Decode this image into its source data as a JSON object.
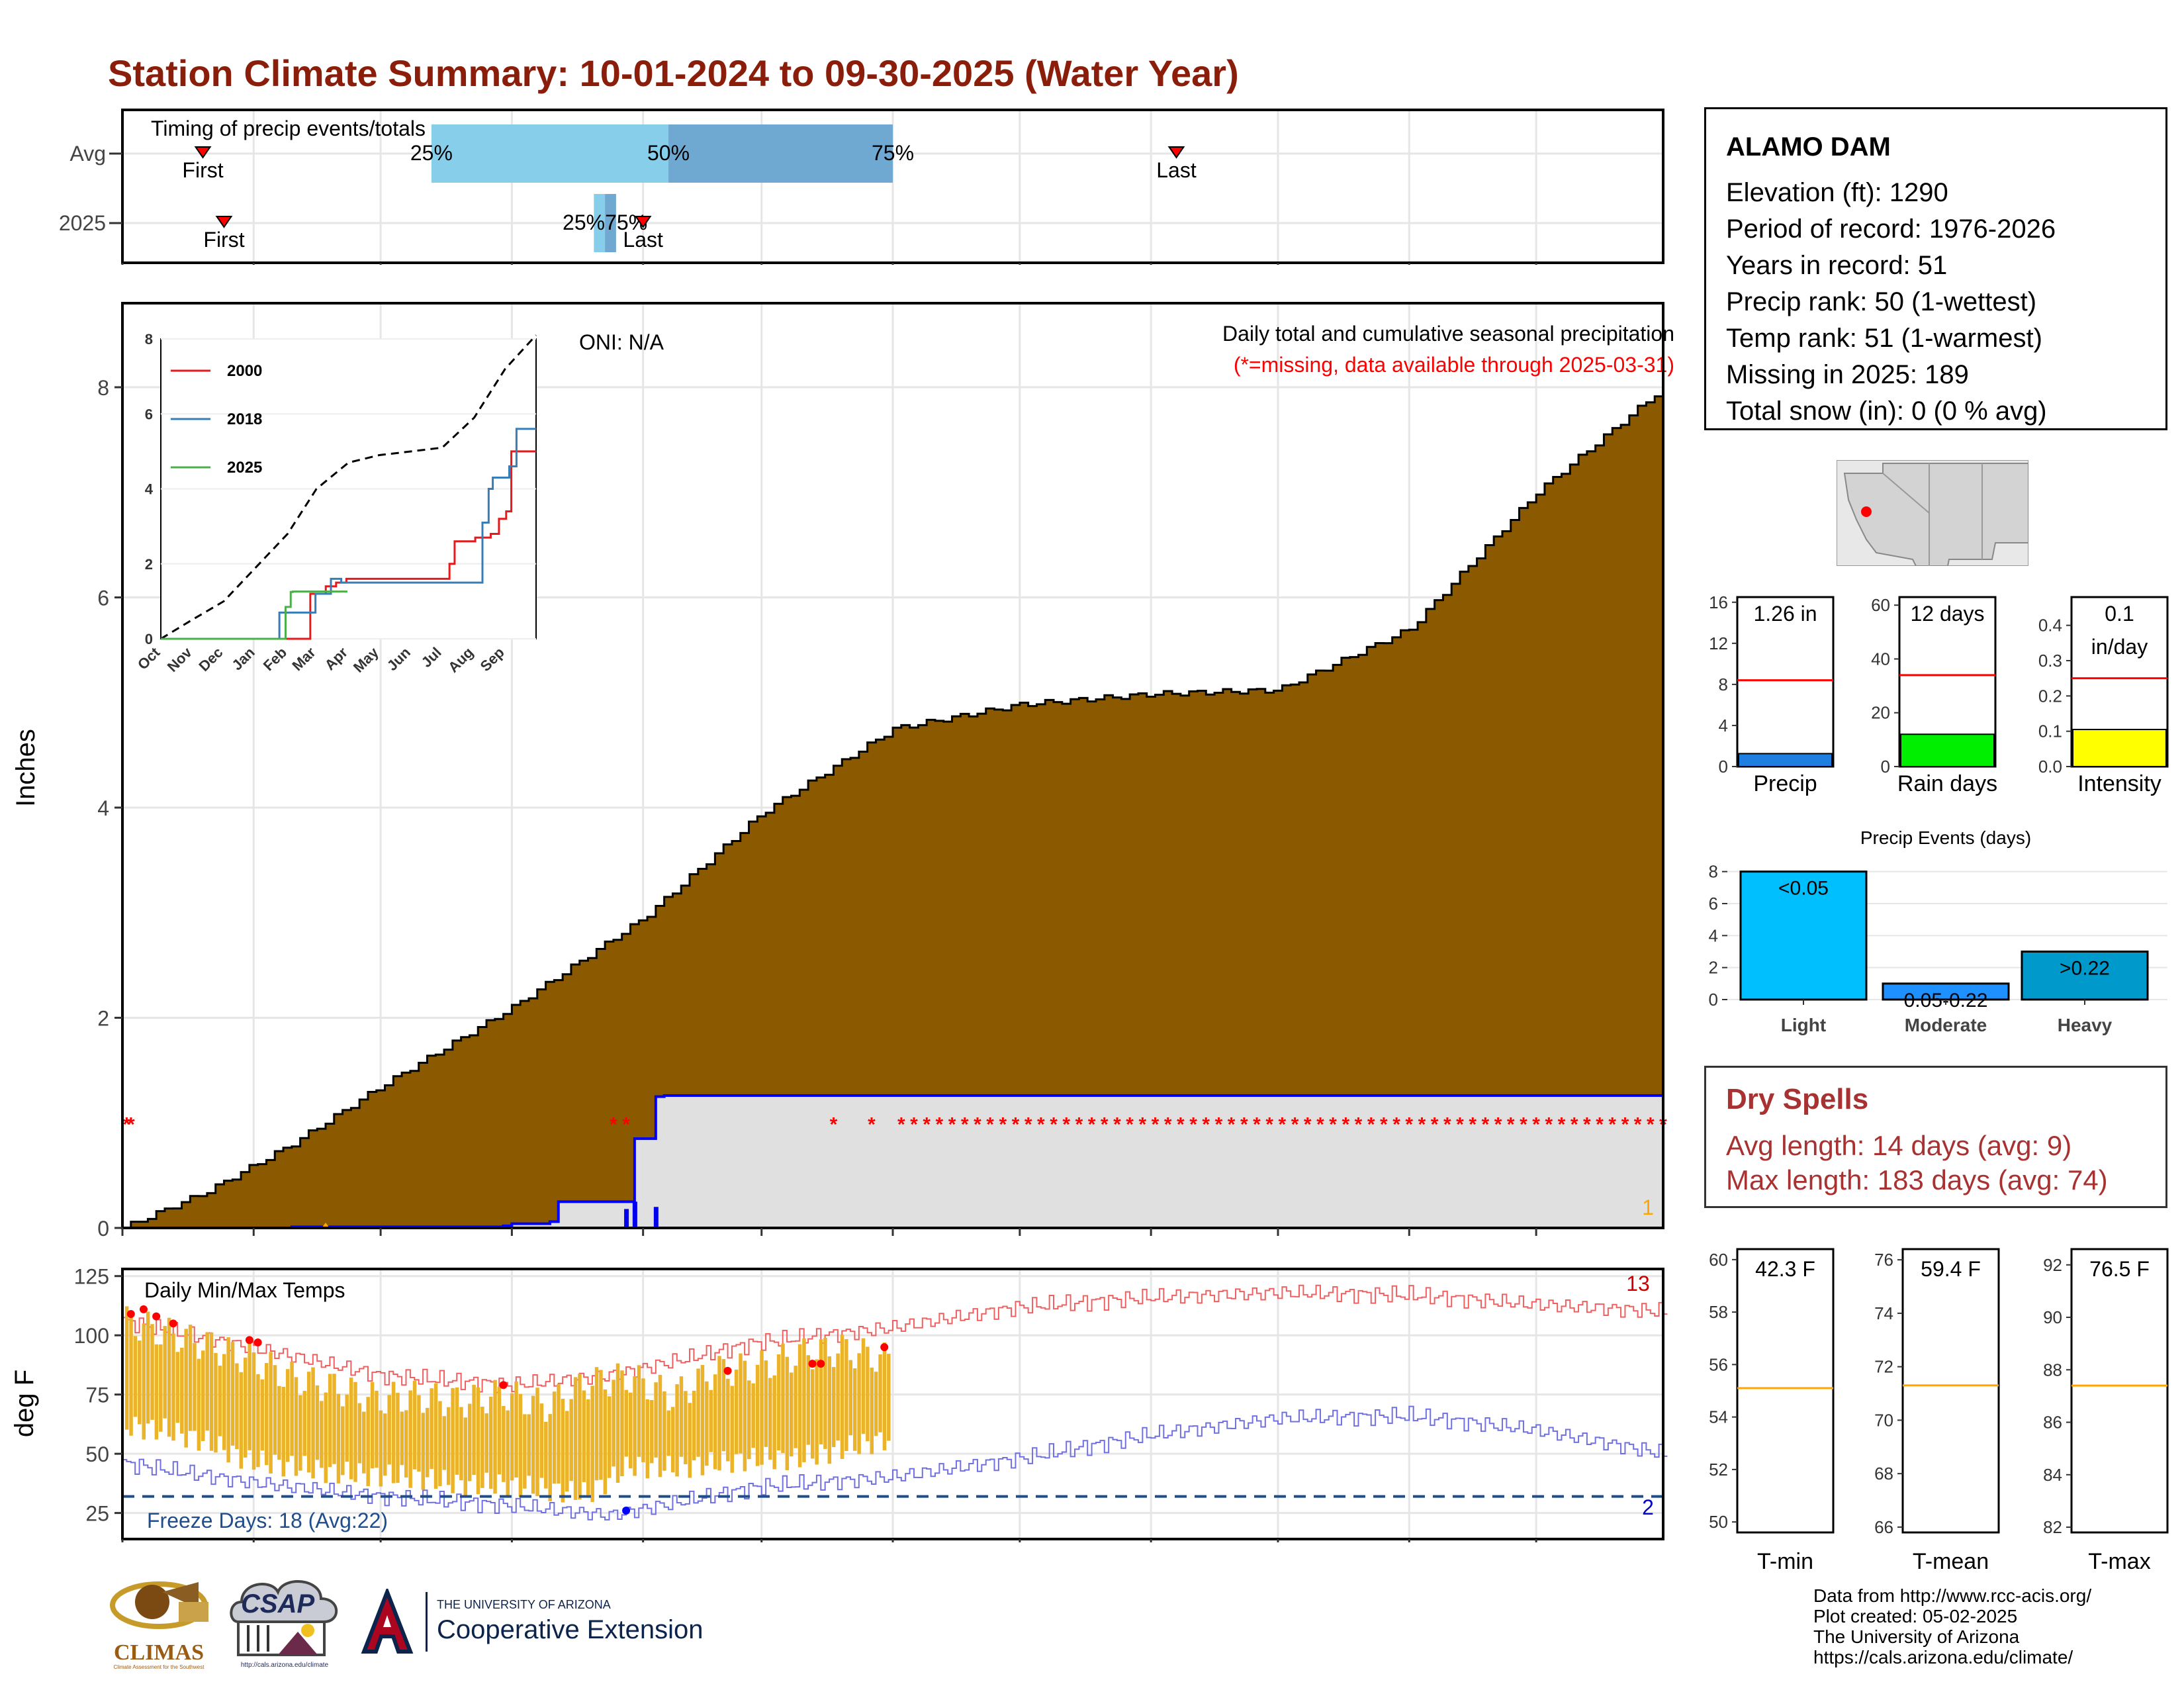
{
  "title": "Station Climate Summary: 10-01-2024 to 09-30-2025 (Water Year)",
  "colors": {
    "title": "#8b1e0a",
    "precip_fill": "#8b5a00",
    "normal_fill": "#e0e0e0",
    "normal_line": "#0000ff",
    "temp_bar": "#ebb32a",
    "max_line": "#f06060",
    "min_line": "#7070e0",
    "missing": "#ff0000",
    "dry_spells": "#a83232"
  },
  "timing_panel": {
    "title": "Timing of precip events/totals",
    "rows": [
      "Avg",
      "2025"
    ],
    "first_label": "First",
    "last_label": "Last",
    "pct_labels": [
      "25%",
      "50%",
      "75%"
    ],
    "overlap_label": "25%75%",
    "avg_first_day": 19,
    "avg_last_day": 249,
    "avg_pcts": [
      73,
      129,
      182
    ],
    "yr_first_day": 24,
    "yr_last_day": 115,
    "yr_pcts": [
      112,
      114,
      116
    ]
  },
  "main_chart": {
    "ylabel": "Inches",
    "oni_label": "ONI: N/A",
    "subtitle": "Daily total and cumulative seasonal precipitation",
    "missing_note": "(*=missing, data available through 2025-03-31)",
    "corner_count": "1",
    "missing_marker": "*",
    "yticks": [
      "0",
      "2",
      "4",
      "6",
      "8"
    ],
    "months": [
      "Oct",
      "Nov",
      "Dec",
      "Jan",
      "Feb",
      "Mar",
      "Apr",
      "May",
      "Jun",
      "Jul",
      "Aug",
      "Sep"
    ]
  },
  "inset": {
    "yticks": [
      "0",
      "2",
      "4",
      "6",
      "8"
    ],
    "months": [
      "Oct",
      "Nov",
      "Dec",
      "Jan",
      "Feb",
      "Mar",
      "Apr",
      "May",
      "Jun",
      "Jul",
      "Aug",
      "Sep"
    ],
    "legend": [
      {
        "name": "2000",
        "color": "#e41a1c"
      },
      {
        "name": "2018",
        "color": "#377eb8"
      },
      {
        "name": "2025",
        "color": "#4daf4a"
      }
    ]
  },
  "temp_chart": {
    "ylabel": "deg F",
    "title": "Daily Min/Max Temps",
    "freeze_label": "Freeze Days: 18 (Avg:22)",
    "max_count": "13",
    "min_count": "2",
    "yticks": [
      "25",
      "50",
      "75",
      "100",
      "125"
    ],
    "months": [
      "Oct",
      "Nov",
      "Dec",
      "Jan",
      "Feb",
      "Mar",
      "Apr",
      "May",
      "Jun",
      "Jul",
      "Aug",
      "Sep"
    ]
  },
  "station": {
    "name": "ALAMO DAM",
    "lines": [
      "Elevation (ft): 1290",
      "Period of record: 1976-2026",
      "Years in record: 51",
      "Precip rank: 50 (1-wettest)",
      "Temp rank: 51 (1-warmest)",
      "Missing in 2025: 189",
      "Total snow (in): 0 (0 % avg)"
    ]
  },
  "mini_bars": [
    {
      "label": "Precip",
      "value_text": "1.26 in",
      "value": 1.26,
      "avg": 8.4,
      "ymax": 16.5,
      "ticks": [
        "0",
        "4",
        "8",
        "12",
        "16"
      ],
      "tickvals": [
        0,
        4,
        8,
        12,
        16
      ],
      "color": "#1e7fe0"
    },
    {
      "label": "Rain days",
      "value_text": "12 days",
      "value": 12,
      "avg": 34,
      "ymax": 63,
      "ticks": [
        "0",
        "20",
        "40",
        "60"
      ],
      "tickvals": [
        0,
        20,
        40,
        60
      ],
      "color": "#00ee00"
    },
    {
      "label": "Intensity",
      "value_text": "0.1 in/day",
      "value_line1": "0.1",
      "value_line2": "in/day",
      "value": 0.105,
      "avg": 0.25,
      "ymax": 0.48,
      "ticks": [
        "0.0",
        "0.1",
        "0.2",
        "0.3",
        "0.4"
      ],
      "tickvals": [
        0,
        0.1,
        0.2,
        0.3,
        0.4
      ],
      "color": "#ffff00"
    }
  ],
  "events_chart": {
    "title": "Precip Events (days)",
    "categories": [
      "Light",
      "Moderate",
      "Heavy"
    ],
    "values": [
      8,
      1,
      3
    ],
    "bar_labels": [
      "<0.05",
      "0.05-0.22",
      ">0.22"
    ],
    "colors": [
      "#00bfff",
      "#1e90ff",
      "#0099cc"
    ],
    "yticks": [
      "0",
      "2",
      "4",
      "6",
      "8"
    ]
  },
  "dry_spells": {
    "title": "Dry Spells",
    "avg": "Avg length: 14 days (avg: 9)",
    "max": "Max length: 183 days (avg: 74)"
  },
  "temp_summaries": [
    {
      "label": "T-min",
      "value": "42.3 F",
      "avg": 55.1,
      "ymin": 49.6,
      "ymax": 60.4,
      "ticks": [
        "50",
        "52",
        "54",
        "56",
        "58",
        "60"
      ],
      "tickvals": [
        50,
        52,
        54,
        56,
        58,
        60
      ]
    },
    {
      "label": "T-mean",
      "value": "59.4 F",
      "avg": 71.3,
      "ymin": 65.8,
      "ymax": 76.4,
      "ticks": [
        "66",
        "68",
        "70",
        "72",
        "74",
        "76"
      ],
      "tickvals": [
        66,
        68,
        70,
        72,
        74,
        76
      ]
    },
    {
      "label": "T-max",
      "value": "76.5 F",
      "avg": 87.4,
      "ymin": 81.8,
      "ymax": 92.6,
      "ticks": [
        "82",
        "84",
        "86",
        "88",
        "90",
        "92"
      ],
      "tickvals": [
        82,
        84,
        86,
        88,
        90,
        92
      ]
    }
  ],
  "credits": [
    "Data from http://www.rcc-acis.org/",
    "Plot created: 05-02-2025",
    "The University of Arizona",
    "https://cals.arizona.edu/climate/"
  ],
  "logos": {
    "climas": "CLIMAS",
    "climas_sub": "Climate Assessment for the Southwest",
    "csap": "CSAP",
    "csap_url": "http://cals.arizona.edu/climate",
    "ua_line1": "THE UNIVERSITY OF ARIZONA",
    "ua_line2": "Cooperative Extension"
  },
  "chart_data": [
    {
      "type": "area",
      "title": "Daily total and cumulative seasonal precipitation",
      "ylabel": "Inches",
      "ylim": [
        0,
        8.8
      ],
      "x_unit": "day of water year (Oct 1 = 0)",
      "normal_cumulative": {
        "x": [
          0,
          20,
          40,
          61,
          92,
          123,
          151,
          182,
          212,
          243,
          273,
          304,
          334,
          364
        ],
        "y": [
          0,
          0.35,
          0.8,
          1.35,
          2.1,
          2.95,
          3.95,
          4.75,
          4.98,
          5.08,
          5.12,
          5.7,
          7.0,
          8.0
        ]
      },
      "observed_cumulative": {
        "x": [
          0,
          40,
          70,
          90,
          92,
          101,
          103,
          120,
          121,
          122,
          126,
          128,
          129,
          181
        ],
        "y": [
          0,
          0.01,
          0.01,
          0.02,
          0.04,
          0.06,
          0.25,
          0.25,
          0.85,
          0.85,
          1.25,
          1.26,
          1.26,
          1.26
        ]
      },
      "missing_days": [
        1,
        2,
        101,
        103,
        120,
        126
      ]
    },
    {
      "type": "line",
      "title": "Daily Min/Max Temps",
      "ylabel": "deg F",
      "ylim": [
        14,
        128
      ],
      "max_envelope": {
        "x": [
          0,
          30,
          61,
          92,
          115,
          150,
          181,
          212,
          243,
          273,
          304,
          334,
          364
        ],
        "y": [
          106,
          95,
          83,
          79,
          83,
          97,
          103,
          112,
          116,
          118,
          117,
          113,
          110
        ]
      },
      "min_envelope": {
        "x": [
          0,
          30,
          61,
          92,
          115,
          150,
          181,
          212,
          243,
          273,
          304,
          334,
          364
        ],
        "y": [
          46,
          38,
          32,
          28,
          24,
          36,
          40,
          48,
          58,
          65,
          66,
          60,
          50
        ]
      },
      "observed_tmax": {
        "x": [
          0,
          10,
          20,
          30,
          40,
          50,
          60,
          70,
          80,
          90,
          100,
          110,
          120,
          130,
          140,
          150,
          160,
          170,
          180
        ],
        "y": [
          106,
          101,
          96,
          90,
          82,
          78,
          73,
          74,
          72,
          75,
          70,
          80,
          82,
          74,
          85,
          86,
          92,
          94,
          90
        ]
      },
      "observed_tmin": {
        "x": [
          0,
          10,
          20,
          30,
          40,
          50,
          60,
          70,
          80,
          90,
          100,
          110,
          120,
          130,
          140,
          150,
          160,
          170,
          180
        ],
        "y": [
          62,
          60,
          55,
          47,
          45,
          42,
          41,
          40,
          37,
          37,
          35,
          33,
          45,
          44,
          46,
          48,
          48,
          52,
          56
        ]
      },
      "freeze_threshold": 32
    },
    {
      "type": "line",
      "title": "",
      "x_unit": "day of water year",
      "ylim": [
        0,
        8
      ],
      "series": [
        {
          "name": "2000",
          "x": [
            0,
            140,
            145,
            160,
            170,
            180,
            182,
            270,
            280,
            285,
            300,
            305,
            320,
            328,
            335,
            340,
            364
          ],
          "y": [
            0,
            0,
            1.2,
            1.4,
            1.5,
            1.6,
            1.6,
            1.6,
            2.0,
            2.6,
            2.6,
            2.7,
            2.8,
            3.2,
            3.4,
            5.0,
            5.0
          ]
        },
        {
          "name": "2018",
          "x": [
            0,
            110,
            115,
            140,
            150,
            160,
            165,
            175,
            300,
            312,
            318,
            322,
            330,
            338,
            345,
            364
          ],
          "y": [
            0,
            0,
            0.7,
            0.7,
            1.2,
            1.2,
            1.6,
            1.5,
            1.5,
            3.1,
            4.0,
            4.3,
            4.3,
            4.6,
            5.6,
            5.6
          ]
        },
        {
          "name": "2025",
          "x": [
            0,
            120,
            121,
            126,
            128,
            181
          ],
          "y": [
            0,
            0,
            0.85,
            1.25,
            1.26,
            1.26
          ]
        }
      ],
      "normal": {
        "x": [
          0,
          30,
          61,
          92,
          123,
          151,
          182,
          212,
          243,
          273,
          304,
          334,
          364
        ],
        "y": [
          0,
          0.5,
          1.0,
          1.9,
          2.8,
          4.0,
          4.7,
          4.9,
          5.0,
          5.1,
          5.9,
          7.2,
          8.1
        ]
      }
    },
    {
      "type": "bar",
      "title": "Precip Events (days)",
      "categories": [
        "Light",
        "Moderate",
        "Heavy"
      ],
      "values": [
        8,
        1,
        3
      ]
    }
  ]
}
